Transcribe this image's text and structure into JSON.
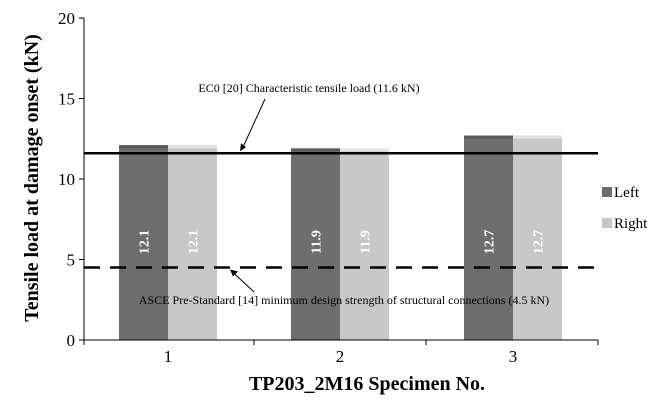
{
  "chart_data": {
    "type": "bar",
    "xlabel": "TP203_2M16 Specimen No.",
    "ylabel": "Tensile load at damage onset (kN)",
    "categories": [
      "1",
      "2",
      "3"
    ],
    "series": [
      {
        "name": "Left",
        "values": [
          12.1,
          11.9,
          12.7
        ],
        "color": "#6e6e6e"
      },
      {
        "name": "Right",
        "values": [
          12.1,
          11.9,
          12.7
        ],
        "color": "#c8c8c8"
      }
    ],
    "ylim": [
      0,
      20
    ],
    "yticks": [
      "0",
      "5",
      "10",
      "15",
      "20"
    ],
    "data_labels": {
      "left": [
        "12.1",
        "11.9",
        "12.7"
      ],
      "right": [
        "12.1",
        "11.9",
        "12.7"
      ]
    },
    "reference_lines": [
      {
        "value": 11.6,
        "style": "solid",
        "label": "EC0 [20] Characteristic tensile load (11.6 kN)"
      },
      {
        "value": 4.5,
        "style": "dashed",
        "label": "ASCE Pre-Standard [14] minimum design strength of structural connections (4.5 kN)"
      }
    ],
    "legend_position": "right",
    "grid": false
  }
}
